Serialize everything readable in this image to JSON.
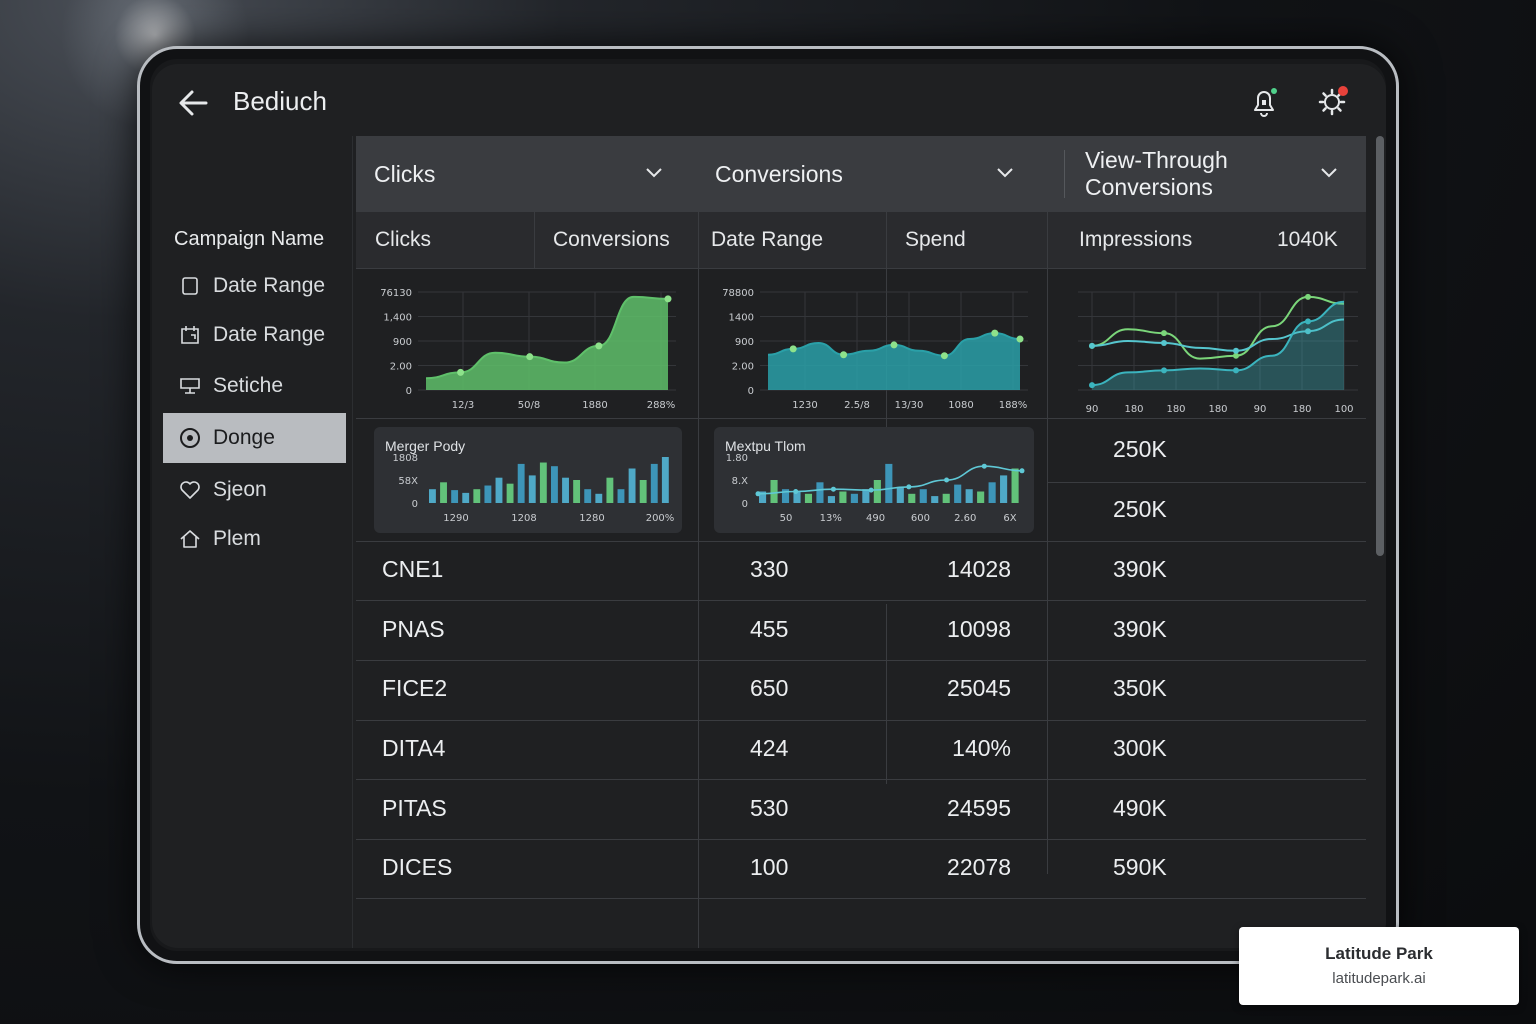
{
  "app": {
    "title": "Bediuch"
  },
  "topbar": {
    "back_icon": "arrow-left-icon",
    "bell_icon": "bell-icon",
    "settings_icon": "gear-icon"
  },
  "sidebar": {
    "heading": "Campaign Name",
    "items": [
      {
        "label": "Date Range",
        "icon": "checkbox-icon",
        "active": false
      },
      {
        "label": "Date Range",
        "icon": "calendar-icon",
        "active": false
      },
      {
        "label": "Setiche",
        "icon": "monitor-icon",
        "active": false
      },
      {
        "label": "Donge",
        "icon": "target-icon",
        "active": true
      },
      {
        "label": "Sjeon",
        "icon": "heart-icon",
        "active": false
      },
      {
        "label": "Plem",
        "icon": "home-icon",
        "active": false
      }
    ]
  },
  "dropdowns": [
    {
      "label": "Clicks"
    },
    {
      "label": "Conversions"
    },
    {
      "label": "View-Through Conversions",
      "line1": "View-Through",
      "line2": "Conversions"
    }
  ],
  "header_row": {
    "clicks": "Clicks",
    "conversions": "Conversions",
    "date_range": "Date Range",
    "spend": "Spend",
    "impressions": "Impressions",
    "impressions_total": "1040K"
  },
  "chart_data": [
    {
      "type": "area",
      "yticks": [
        "76130",
        "1,400",
        "900",
        "2.00",
        "0"
      ],
      "xticks": [
        "12/3",
        "50/8",
        "1880",
        "288%"
      ],
      "values": [
        0.12,
        0.18,
        0.38,
        0.34,
        0.28,
        0.45,
        0.95,
        0.93
      ],
      "color": "#5fc06a"
    },
    {
      "type": "area",
      "yticks": [
        "78800",
        "1400",
        "900",
        "2.00",
        "0"
      ],
      "xticks": [
        "1230",
        "2.5/8",
        "13/30",
        "1080",
        "188%"
      ],
      "values": [
        0.36,
        0.42,
        0.48,
        0.36,
        0.4,
        0.46,
        0.4,
        0.35,
        0.52,
        0.58,
        0.52
      ],
      "color": "#2aa0a8"
    },
    {
      "type": "line",
      "xticks": [
        "90",
        "180",
        "180",
        "180",
        "90",
        "180",
        "100"
      ],
      "series": [
        {
          "values": [
            0.45,
            0.62,
            0.58,
            0.32,
            0.35,
            0.65,
            0.95,
            0.88
          ],
          "color": "#7bd67a"
        },
        {
          "values": [
            0.45,
            0.5,
            0.48,
            0.43,
            0.4,
            0.52,
            0.6,
            0.72
          ],
          "color": "#56c6cf"
        },
        {
          "values": [
            0.05,
            0.18,
            0.2,
            0.22,
            0.2,
            0.35,
            0.7,
            0.9
          ],
          "color": "#3bb4be"
        }
      ]
    },
    {
      "type": "bar",
      "title": "Merger Pody",
      "yticks": [
        "1808",
        "58X",
        "0"
      ],
      "xticks": [
        "1290",
        "1208",
        "1280",
        "200%"
      ],
      "values": [
        0.3,
        0.45,
        0.28,
        0.22,
        0.3,
        0.38,
        0.55,
        0.42,
        0.85,
        0.6,
        0.88,
        0.8,
        0.55,
        0.5,
        0.3,
        0.2,
        0.55,
        0.3,
        0.75,
        0.5,
        0.85,
        1.0
      ]
    },
    {
      "type": "bar",
      "title": "Mextpu Tlom",
      "yticks": [
        "1.80",
        "8.X",
        "0"
      ],
      "xticks": [
        "50",
        "13%",
        "490",
        "600",
        "2.60",
        "6X"
      ],
      "values": [
        0.25,
        0.5,
        0.3,
        0.25,
        0.2,
        0.45,
        0.15,
        0.25,
        0.2,
        0.3,
        0.5,
        0.85,
        0.35,
        0.2,
        0.3,
        0.15,
        0.2,
        0.4,
        0.3,
        0.25,
        0.45,
        0.6,
        0.75
      ],
      "line": [
        0.2,
        0.25,
        0.3,
        0.28,
        0.35,
        0.5,
        0.8,
        0.7
      ]
    }
  ],
  "impressions_side": [
    "250K",
    "250K"
  ],
  "rows": [
    {
      "name": "CNE1",
      "clicks": "330",
      "conv": "14028",
      "impr": "390K"
    },
    {
      "name": "PNAS",
      "clicks": "455",
      "conv": "10098",
      "impr": "390K"
    },
    {
      "name": "FICE2",
      "clicks": "650",
      "conv": "25045",
      "impr": "350K"
    },
    {
      "name": "DITA4",
      "clicks": "424",
      "conv": "140%",
      "impr": "300K"
    },
    {
      "name": "PITAS",
      "clicks": "530",
      "conv": "24595",
      "impr": "490K"
    },
    {
      "name": "DICES",
      "clicks": "100",
      "conv": "22078",
      "impr": "590K"
    }
  ],
  "watermark": {
    "name": "Latitude Park",
    "url": "latitudepark.ai"
  }
}
